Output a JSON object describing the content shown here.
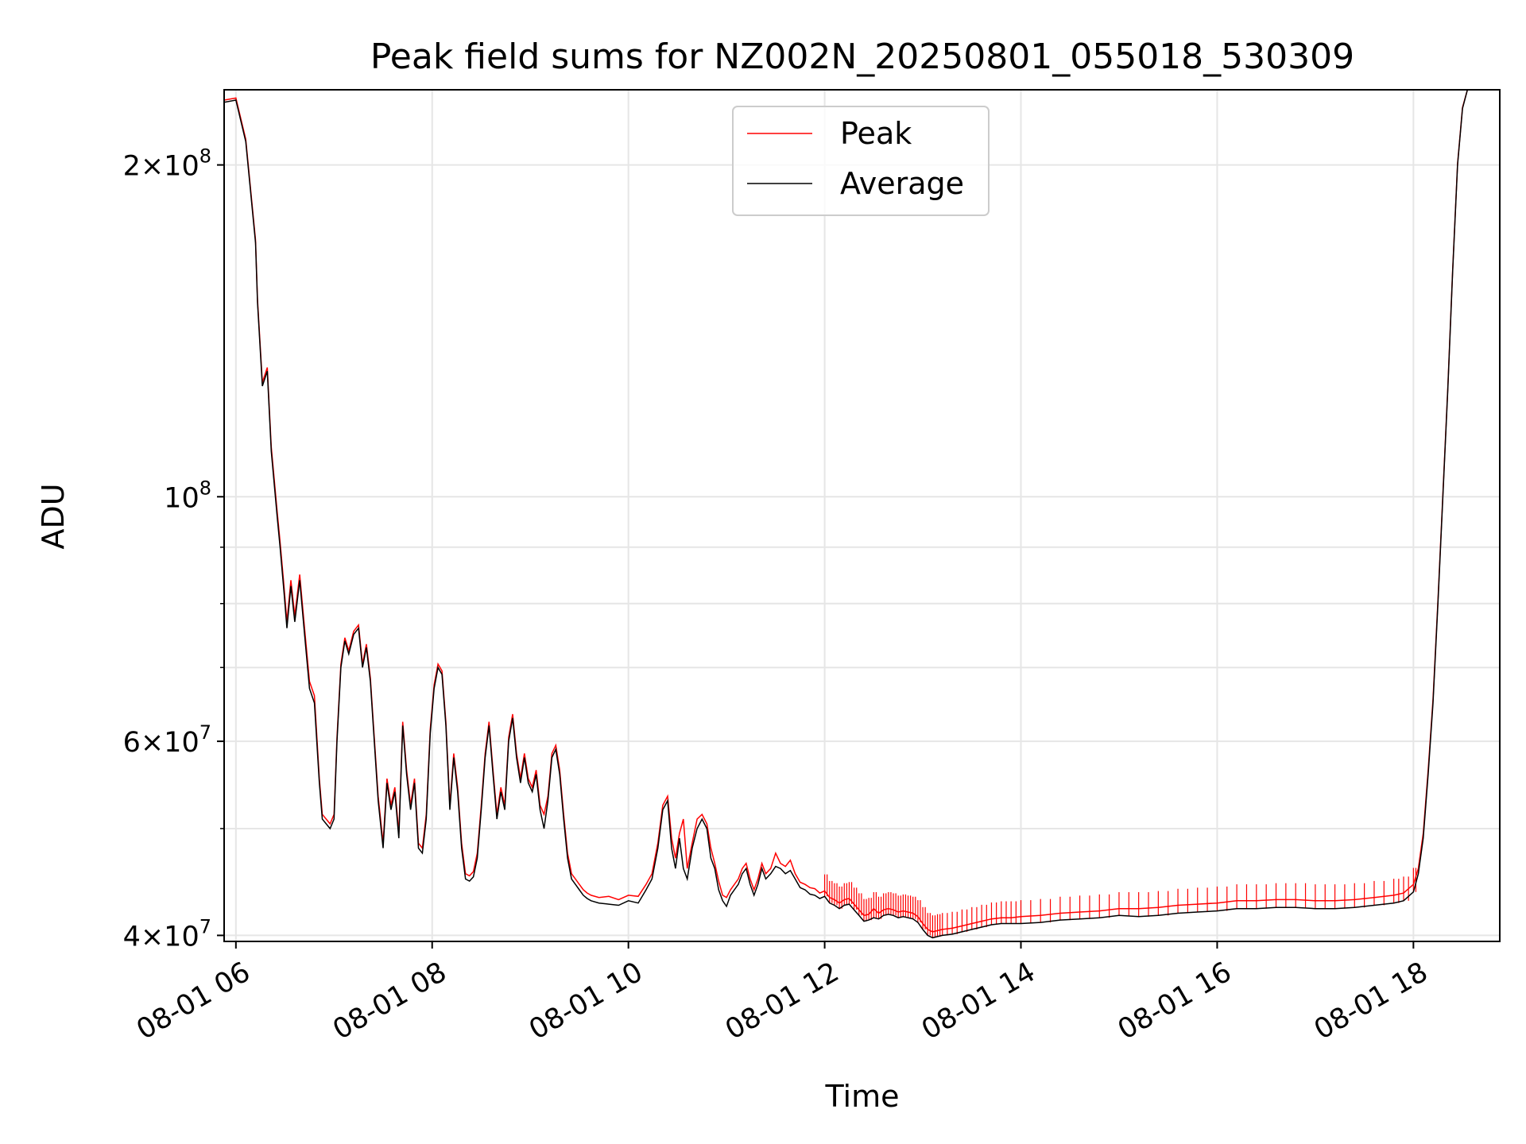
{
  "chart_data": {
    "type": "line",
    "title": "Peak field sums for NZ002N_20250801_055018_530309",
    "xlabel": "Time",
    "ylabel": "ADU",
    "x_unit": "hour of 2025-08-01",
    "xlim": [
      5.88,
      18.88
    ],
    "ylim": [
      39500000,
      234000000
    ],
    "yscale": "log",
    "grid": true,
    "legend_position": "top-center",
    "x_ticks": [
      {
        "value": 6,
        "label": "08-01 06"
      },
      {
        "value": 8,
        "label": "08-01 08"
      },
      {
        "value": 10,
        "label": "08-01 10"
      },
      {
        "value": 12,
        "label": "08-01 12"
      },
      {
        "value": 14,
        "label": "08-01 14"
      },
      {
        "value": 16,
        "label": "08-01 16"
      },
      {
        "value": 18,
        "label": "08-01 18"
      }
    ],
    "y_ticks": [
      {
        "value": 40000000,
        "mantissa": "4",
        "exponent": "7"
      },
      {
        "value": 60000000,
        "mantissa": "6",
        "exponent": "7"
      },
      {
        "value": 100000000,
        "mantissa": "",
        "exponent": "8"
      },
      {
        "value": 200000000,
        "mantissa": "2",
        "exponent": "8"
      }
    ],
    "y_minor_ticks": [
      50000000,
      70000000,
      80000000,
      90000000
    ],
    "series": [
      {
        "name": "Peak",
        "color": "#ff0000"
      },
      {
        "name": "Average",
        "color": "#000000"
      }
    ],
    "x": [
      5.88,
      6.0,
      6.1,
      6.2,
      6.22,
      6.27,
      6.32,
      6.36,
      6.42,
      6.45,
      6.49,
      6.52,
      6.56,
      6.6,
      6.65,
      6.7,
      6.75,
      6.8,
      6.85,
      6.88,
      6.92,
      6.96,
      7.0,
      7.03,
      7.07,
      7.11,
      7.15,
      7.2,
      7.25,
      7.29,
      7.33,
      7.37,
      7.41,
      7.45,
      7.5,
      7.54,
      7.58,
      7.62,
      7.66,
      7.7,
      7.74,
      7.78,
      7.82,
      7.86,
      7.9,
      7.94,
      7.98,
      8.02,
      8.06,
      8.1,
      8.14,
      8.18,
      8.22,
      8.26,
      8.3,
      8.34,
      8.38,
      8.42,
      8.46,
      8.5,
      8.54,
      8.58,
      8.62,
      8.66,
      8.7,
      8.74,
      8.78,
      8.82,
      8.86,
      8.9,
      8.94,
      8.98,
      9.02,
      9.06,
      9.1,
      9.14,
      9.18,
      9.22,
      9.26,
      9.3,
      9.34,
      9.38,
      9.42,
      9.46,
      9.5,
      9.54,
      9.58,
      9.62,
      9.7,
      9.8,
      9.9,
      10.0,
      10.1,
      10.18,
      10.24,
      10.3,
      10.35,
      10.4,
      10.44,
      10.48,
      10.52,
      10.56,
      10.6,
      10.65,
      10.7,
      10.75,
      10.8,
      10.84,
      10.88,
      10.92,
      10.96,
      11.0,
      11.04,
      11.08,
      11.12,
      11.16,
      11.2,
      11.24,
      11.28,
      11.32,
      11.36,
      11.4,
      11.45,
      11.5,
      11.55,
      11.6,
      11.65,
      11.7,
      11.75,
      11.8,
      11.85,
      11.9,
      11.95,
      12.0,
      12.05,
      12.1,
      12.15,
      12.2,
      12.25,
      12.3,
      12.35,
      12.4,
      12.45,
      12.5,
      12.55,
      12.6,
      12.65,
      12.7,
      12.75,
      12.8,
      12.85,
      12.9,
      12.95,
      13.0,
      13.05,
      13.1,
      13.15,
      13.2,
      13.3,
      13.4,
      13.5,
      13.6,
      13.7,
      13.8,
      13.9,
      14.0,
      14.2,
      14.4,
      14.6,
      14.8,
      15.0,
      15.2,
      15.4,
      15.6,
      15.8,
      16.0,
      16.2,
      16.4,
      16.6,
      16.8,
      17.0,
      17.2,
      17.4,
      17.6,
      17.8,
      17.9,
      18.0,
      18.05,
      18.1,
      18.15,
      18.2,
      18.25,
      18.3,
      18.35,
      18.4,
      18.45,
      18.5,
      18.55,
      18.6,
      18.7,
      18.8,
      18.88
    ],
    "average": [
      228000000,
      229000000,
      210000000,
      170000000,
      150000000,
      126000000,
      130000000,
      110000000,
      96000000,
      90000000,
      82000000,
      76000000,
      83000000,
      77000000,
      84000000,
      75000000,
      67000000,
      65000000,
      55000000,
      51000000,
      50500000,
      50000000,
      51000000,
      60000000,
      70000000,
      74000000,
      72000000,
      75000000,
      76000000,
      70000000,
      73000000,
      68000000,
      60000000,
      53000000,
      48000000,
      55000000,
      52000000,
      54000000,
      49000000,
      62000000,
      56000000,
      52000000,
      55000000,
      48000000,
      47500000,
      51000000,
      61000000,
      67000000,
      70000000,
      69000000,
      62000000,
      52000000,
      58000000,
      54000000,
      48000000,
      45000000,
      44800000,
      45200000,
      47000000,
      52000000,
      58000000,
      62000000,
      56000000,
      51000000,
      54000000,
      52000000,
      60000000,
      63000000,
      58000000,
      55000000,
      58000000,
      55000000,
      54000000,
      56000000,
      52000000,
      50000000,
      53000000,
      58000000,
      59000000,
      56000000,
      51000000,
      47000000,
      45000000,
      44500000,
      44000000,
      43500000,
      43200000,
      43000000,
      42800000,
      42700000,
      42600000,
      43000000,
      42800000,
      44000000,
      45000000,
      48000000,
      52000000,
      53000000,
      48000000,
      46000000,
      49000000,
      46000000,
      45000000,
      48000000,
      50000000,
      51000000,
      50000000,
      47000000,
      46000000,
      44000000,
      43000000,
      42500000,
      43500000,
      44000000,
      44500000,
      45500000,
      46000000,
      44500000,
      43500000,
      44500000,
      46000000,
      45000000,
      45500000,
      46200000,
      46000000,
      45500000,
      45800000,
      45000000,
      44200000,
      44000000,
      43600000,
      43500000,
      43200000,
      43400000,
      42800000,
      42600000,
      42300000,
      42600000,
      42700000,
      42200000,
      41700000,
      41200000,
      41300000,
      41500000,
      41400000,
      41700000,
      41800000,
      41700000,
      41500000,
      41600000,
      41500000,
      41400000,
      41100000,
      40500000,
      40000000,
      39800000,
      39900000,
      40000000,
      40100000,
      40300000,
      40500000,
      40700000,
      40900000,
      41000000,
      41000000,
      41000000,
      41100000,
      41300000,
      41400000,
      41500000,
      41700000,
      41600000,
      41700000,
      41900000,
      42000000,
      42100000,
      42300000,
      42300000,
      42400000,
      42400000,
      42300000,
      42300000,
      42400000,
      42600000,
      42800000,
      43000000,
      43800000,
      45500000,
      49000000,
      56000000,
      65000000,
      80000000,
      100000000,
      125000000,
      160000000,
      200000000,
      225000000,
      234000000,
      234000000,
      234000000
    ],
    "peak": [
      229000000,
      230000000,
      211000000,
      171000000,
      151000000,
      127000000,
      131000000,
      111000000,
      97000000,
      91000000,
      83000000,
      77000000,
      84000000,
      78000000,
      85000000,
      76000000,
      68000000,
      66000000,
      55500000,
      51500000,
      51000000,
      50500000,
      51500000,
      60500000,
      70500000,
      74500000,
      72500000,
      75500000,
      76500000,
      70500000,
      73500000,
      68500000,
      60500000,
      53500000,
      48500000,
      55500000,
      52500000,
      54500000,
      49500000,
      62500000,
      56500000,
      52500000,
      55500000,
      48500000,
      48000000,
      51500000,
      61500000,
      67500000,
      70500000,
      69500000,
      62500000,
      52500000,
      58500000,
      54500000,
      48500000,
      45500000,
      45300000,
      45700000,
      47500000,
      52500000,
      58500000,
      62500000,
      56500000,
      51500000,
      54500000,
      52500000,
      60500000,
      63500000,
      58500000,
      55500000,
      58500000,
      55500000,
      54500000,
      56500000,
      52500000,
      51500000,
      53500000,
      58500000,
      59500000,
      56500000,
      51500000,
      47500000,
      45500000,
      45000000,
      44500000,
      44000000,
      43700000,
      43500000,
      43300000,
      43400000,
      43100000,
      43500000,
      43400000,
      44500000,
      45500000,
      48500000,
      52500000,
      53500000,
      49000000,
      47000000,
      49500000,
      51000000,
      46000000,
      48500000,
      51000000,
      51500000,
      50500000,
      48000000,
      46500000,
      44800000,
      43500000,
      43300000,
      44000000,
      44500000,
      45000000,
      46000000,
      46500000,
      45000000,
      44000000,
      45000000,
      46500000,
      45500000,
      46000000,
      47500000,
      46500000,
      46200000,
      46800000,
      45500000,
      44700000,
      44500000,
      44200000,
      44100000,
      43700000,
      43900000,
      43300000,
      43100000,
      42800000,
      43100000,
      43200000,
      42700000,
      42200000,
      41700000,
      41800000,
      42300000,
      41900000,
      42200000,
      42300000,
      42200000,
      42000000,
      42100000,
      42000000,
      41900000,
      41600000,
      41000000,
      40500000,
      40300000,
      40400000,
      40500000,
      40600000,
      40800000,
      41000000,
      41200000,
      41400000,
      41500000,
      41500000,
      41600000,
      41700000,
      41900000,
      42000000,
      42100000,
      42300000,
      42300000,
      42400000,
      42600000,
      42700000,
      42800000,
      43000000,
      43000000,
      43100000,
      43100000,
      43000000,
      43000000,
      43100000,
      43300000,
      43500000,
      43700000,
      44500000,
      46000000,
      49500000,
      56500000,
      65500000,
      80500000,
      100500000,
      125500000,
      160500000,
      200500000,
      225500000,
      234000000,
      234000000,
      234000000
    ]
  }
}
